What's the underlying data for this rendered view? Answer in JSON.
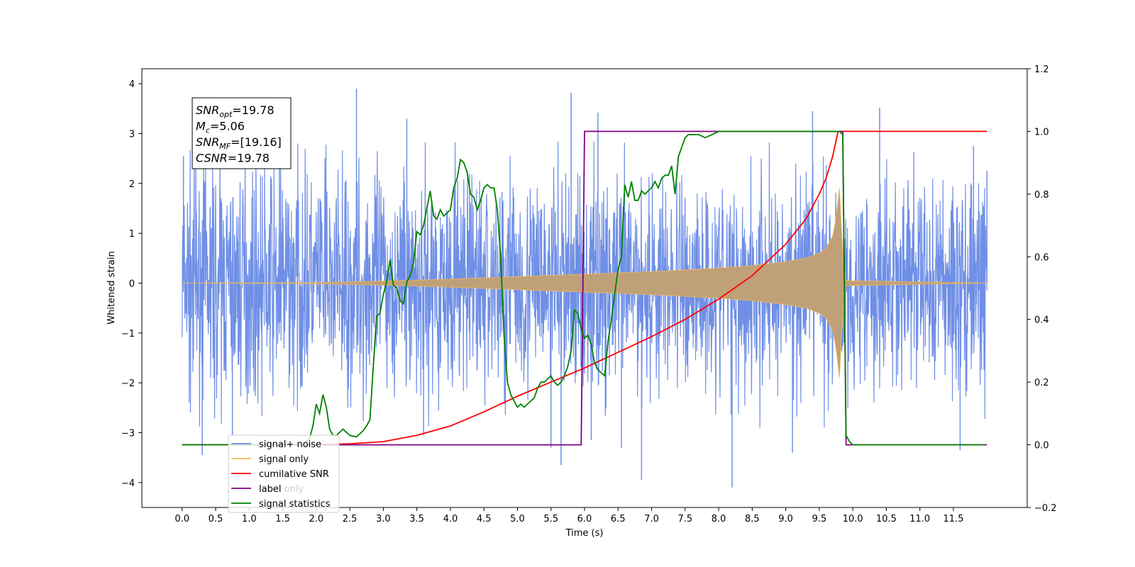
{
  "chart_data": {
    "type": "line",
    "xlabel": "Time (s)",
    "ylabel": "Whitened strain",
    "xlim": [
      -0.6,
      12.6
    ],
    "ylim": [
      -4.5,
      4.3
    ],
    "y2lim": [
      -0.2,
      1.2
    ],
    "x_ticks": [
      0.0,
      0.5,
      1.0,
      1.5,
      2.0,
      2.5,
      3.0,
      3.5,
      4.0,
      4.5,
      5.0,
      5.5,
      6.0,
      6.5,
      7.0,
      7.5,
      8.0,
      8.5,
      9.0,
      9.5,
      10.0,
      10.5,
      11.0,
      11.5
    ],
    "x_tick_labels": [
      "0.0",
      "0.5",
      "1.0",
      "1.5",
      "2.0",
      "2.5",
      "3.0",
      "3.5",
      "4.0",
      "4.5",
      "5.0",
      "5.5",
      "6.0",
      "6.5",
      "7.0",
      "7.5",
      "8.0",
      "8.5",
      "9.0",
      "9.5",
      "10.0",
      "10.5",
      "11.0",
      "11.5"
    ],
    "y_ticks": [
      -4,
      -3,
      -2,
      -1,
      0,
      1,
      2,
      3,
      4
    ],
    "y_tick_labels": [
      "−4",
      "−3",
      "−2",
      "−1",
      "0",
      "1",
      "2",
      "3",
      "4"
    ],
    "y2_ticks": [
      -0.2,
      0.0,
      0.2,
      0.4,
      0.6,
      0.8,
      1.0,
      1.2
    ],
    "y2_tick_labels": [
      "−0.2",
      "0.0",
      "0.2",
      "0.4",
      "0.6",
      "0.8",
      "1.0",
      "1.2"
    ],
    "colors": {
      "noise": "#6f8fe6",
      "signal": "#f2b756",
      "signal_fill": "#c0a078",
      "cumulative_snr": "#ff0000",
      "label": "#800080",
      "statistics": "#008000"
    },
    "noise_envelope": {
      "x": [
        0.0,
        12.0
      ],
      "typical_amplitude": 2.0,
      "spikes": [
        {
          "x": 0.02,
          "y": 2.55
        },
        {
          "x": 0.3,
          "y": -3.45
        },
        {
          "x": 0.75,
          "y": -3.05
        },
        {
          "x": 1.45,
          "y": 3.4
        },
        {
          "x": 2.6,
          "y": 3.9
        },
        {
          "x": 3.35,
          "y": 3.3
        },
        {
          "x": 3.6,
          "y": -3.05
        },
        {
          "x": 5.8,
          "y": 3.82
        },
        {
          "x": 5.5,
          "y": -3.3
        },
        {
          "x": 5.65,
          "y": -3.65
        },
        {
          "x": 6.2,
          "y": 3.42
        },
        {
          "x": 6.1,
          "y": -3.15
        },
        {
          "x": 6.55,
          "y": -3.3
        },
        {
          "x": 6.85,
          "y": -3.95
        },
        {
          "x": 8.2,
          "y": -4.1
        },
        {
          "x": 9.4,
          "y": 3.45
        },
        {
          "x": 9.1,
          "y": -3.4
        },
        {
          "x": 10.4,
          "y": 3.52
        },
        {
          "x": 11.6,
          "y": -3.35
        },
        {
          "x": 11.8,
          "y": 2.75
        },
        {
          "x": 12.0,
          "y": 2.25
        }
      ]
    },
    "signal_envelope": {
      "x": [
        0.0,
        2.0,
        3.0,
        4.0,
        5.0,
        6.0,
        7.0,
        8.0,
        8.5,
        9.0,
        9.3,
        9.5,
        9.6,
        9.7,
        9.75,
        9.8,
        9.85,
        9.9,
        12.0
      ],
      "amplitude": [
        0.0,
        0.01,
        0.04,
        0.08,
        0.13,
        0.18,
        0.23,
        0.3,
        0.35,
        0.43,
        0.5,
        0.6,
        0.7,
        0.95,
        1.3,
        1.9,
        0.6,
        0.05,
        0.0
      ]
    },
    "series": [
      {
        "name": "cumilative SNR",
        "axis": "right",
        "x": [
          0.0,
          2.0,
          2.5,
          3.0,
          3.5,
          4.0,
          4.5,
          5.0,
          5.5,
          6.0,
          6.5,
          7.0,
          7.5,
          8.0,
          8.5,
          9.0,
          9.3,
          9.5,
          9.6,
          9.7,
          9.78,
          9.85,
          12.0
        ],
        "values": [
          0.0,
          0.0,
          0.003,
          0.01,
          0.03,
          0.06,
          0.105,
          0.155,
          0.2,
          0.245,
          0.295,
          0.345,
          0.4,
          0.465,
          0.54,
          0.64,
          0.72,
          0.8,
          0.85,
          0.92,
          1.0,
          1.0,
          1.0
        ]
      },
      {
        "name": "label",
        "axis": "right",
        "x": [
          0.0,
          5.95,
          6.0,
          9.85,
          9.9,
          12.0
        ],
        "values": [
          0.0,
          0.0,
          1.0,
          1.0,
          0.0,
          0.0
        ]
      },
      {
        "name": "signal statistics",
        "axis": "right",
        "x": [
          0.0,
          1.8,
          1.9,
          1.95,
          2.0,
          2.05,
          2.1,
          2.15,
          2.2,
          2.25,
          2.3,
          2.35,
          2.4,
          2.5,
          2.6,
          2.7,
          2.75,
          2.8,
          2.85,
          2.9,
          2.95,
          3.0,
          3.05,
          3.1,
          3.15,
          3.2,
          3.25,
          3.3,
          3.35,
          3.4,
          3.45,
          3.5,
          3.55,
          3.6,
          3.7,
          3.75,
          3.8,
          3.85,
          3.9,
          3.95,
          4.0,
          4.05,
          4.1,
          4.15,
          4.2,
          4.25,
          4.3,
          4.35,
          4.4,
          4.45,
          4.5,
          4.55,
          4.6,
          4.65,
          4.7,
          4.75,
          4.8,
          4.85,
          4.9,
          4.95,
          5.0,
          5.05,
          5.1,
          5.15,
          5.2,
          5.25,
          5.3,
          5.35,
          5.4,
          5.45,
          5.5,
          5.55,
          5.6,
          5.65,
          5.7,
          5.75,
          5.8,
          5.85,
          5.9,
          5.95,
          6.0,
          6.05,
          6.1,
          6.15,
          6.2,
          6.25,
          6.3,
          6.35,
          6.4,
          6.45,
          6.5,
          6.55,
          6.6,
          6.65,
          6.7,
          6.75,
          6.8,
          6.85,
          6.9,
          6.95,
          7.0,
          7.05,
          7.1,
          7.15,
          7.2,
          7.25,
          7.3,
          7.35,
          7.4,
          7.45,
          7.5,
          7.55,
          7.6,
          7.7,
          7.8,
          7.9,
          8.0,
          8.2,
          9.7,
          9.8,
          9.85,
          9.9,
          9.95,
          10.0,
          11.95
        ],
        "values": [
          0.0,
          0.0,
          0.02,
          0.06,
          0.13,
          0.1,
          0.16,
          0.12,
          0.05,
          0.03,
          0.03,
          0.04,
          0.05,
          0.03,
          0.025,
          0.045,
          0.06,
          0.08,
          0.25,
          0.41,
          0.42,
          0.48,
          0.52,
          0.59,
          0.51,
          0.5,
          0.46,
          0.45,
          0.52,
          0.54,
          0.58,
          0.68,
          0.67,
          0.7,
          0.81,
          0.73,
          0.72,
          0.75,
          0.73,
          0.74,
          0.75,
          0.82,
          0.85,
          0.91,
          0.9,
          0.87,
          0.8,
          0.79,
          0.75,
          0.78,
          0.82,
          0.83,
          0.82,
          0.82,
          0.75,
          0.6,
          0.35,
          0.2,
          0.16,
          0.14,
          0.12,
          0.13,
          0.12,
          0.13,
          0.14,
          0.15,
          0.18,
          0.2,
          0.2,
          0.21,
          0.22,
          0.2,
          0.19,
          0.2,
          0.22,
          0.25,
          0.3,
          0.43,
          0.42,
          0.37,
          0.34,
          0.35,
          0.32,
          0.26,
          0.24,
          0.23,
          0.22,
          0.33,
          0.4,
          0.48,
          0.56,
          0.6,
          0.83,
          0.79,
          0.84,
          0.78,
          0.78,
          0.81,
          0.8,
          0.81,
          0.82,
          0.84,
          0.82,
          0.85,
          0.86,
          0.86,
          0.89,
          0.8,
          0.92,
          0.95,
          0.98,
          0.99,
          0.99,
          0.99,
          0.98,
          0.99,
          1.0,
          1.0,
          1.0,
          1.0,
          0.99,
          0.03,
          0.01,
          0.0,
          0.0
        ]
      }
    ],
    "legend": {
      "placement": "lower-left",
      "entries": [
        {
          "label": "signal+ noise",
          "color_key": "noise"
        },
        {
          "label": "signal only",
          "color_key": "signal"
        },
        {
          "label": "cumilative SNR",
          "color_key": "cumulative_snr"
        },
        {
          "label": "label",
          "color_key": "label"
        },
        {
          "label": "signal statistics",
          "color_key": "statistics"
        }
      ],
      "hidden_text": "label only"
    },
    "info_box": {
      "placement": "top-left",
      "lines": [
        {
          "var": "SNR",
          "sub": "opt",
          "value": "=19.78"
        },
        {
          "var": "M",
          "sub": "c",
          "value": "=5.06"
        },
        {
          "var": "SNR",
          "sub": "MF",
          "value": "=[19.16]"
        },
        {
          "var": "CSNR",
          "sub": "",
          "value": "=19.78"
        }
      ]
    }
  }
}
